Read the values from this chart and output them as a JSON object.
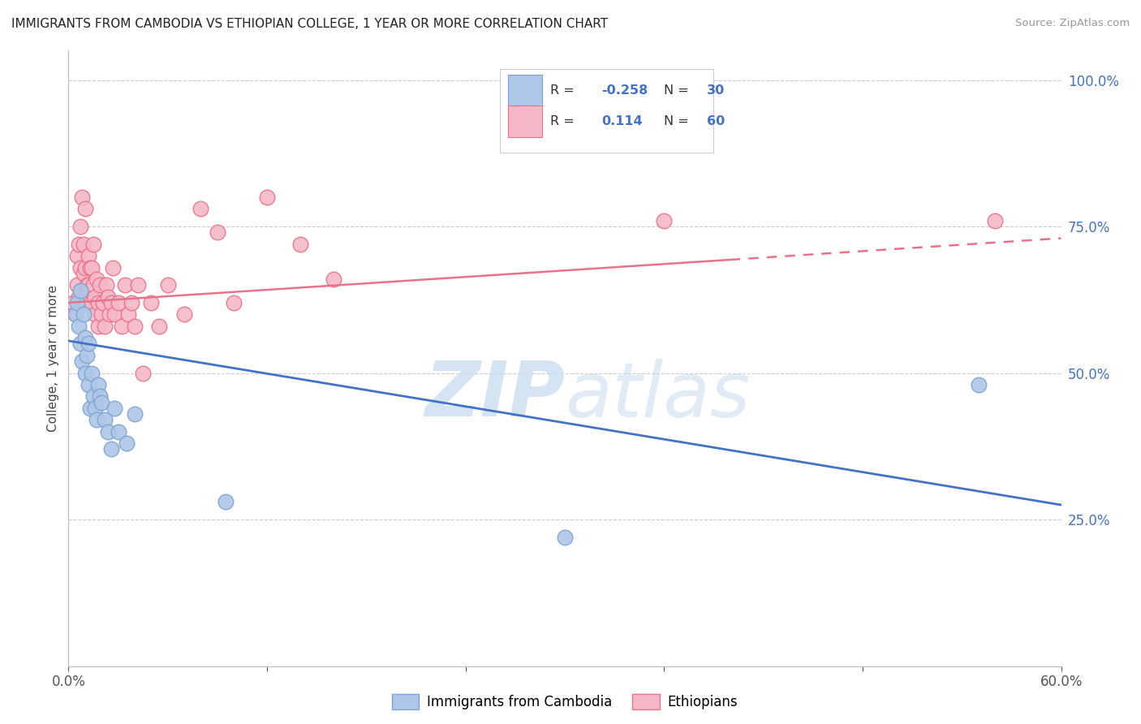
{
  "title": "IMMIGRANTS FROM CAMBODIA VS ETHIOPIAN COLLEGE, 1 YEAR OR MORE CORRELATION CHART",
  "source": "Source: ZipAtlas.com",
  "ylabel": "College, 1 year or more",
  "ytick_labels": [
    "100.0%",
    "75.0%",
    "50.0%",
    "25.0%"
  ],
  "ytick_values": [
    1.0,
    0.75,
    0.5,
    0.25
  ],
  "xlim": [
    0.0,
    0.6
  ],
  "ylim": [
    0.0,
    1.05
  ],
  "legend_blue_r": "-0.258",
  "legend_blue_n": "30",
  "legend_pink_r": "0.114",
  "legend_pink_n": "60",
  "watermark_zip": "ZIP",
  "watermark_atlas": "atlas",
  "blue_scatter_x": [
    0.004,
    0.005,
    0.006,
    0.007,
    0.007,
    0.008,
    0.009,
    0.01,
    0.01,
    0.011,
    0.012,
    0.012,
    0.013,
    0.014,
    0.015,
    0.016,
    0.017,
    0.018,
    0.019,
    0.02,
    0.022,
    0.024,
    0.026,
    0.028,
    0.03,
    0.035,
    0.04,
    0.095,
    0.3,
    0.55
  ],
  "blue_scatter_y": [
    0.6,
    0.62,
    0.58,
    0.64,
    0.55,
    0.52,
    0.6,
    0.5,
    0.56,
    0.53,
    0.48,
    0.55,
    0.44,
    0.5,
    0.46,
    0.44,
    0.42,
    0.48,
    0.46,
    0.45,
    0.42,
    0.4,
    0.37,
    0.44,
    0.4,
    0.38,
    0.43,
    0.28,
    0.22,
    0.48
  ],
  "pink_scatter_x": [
    0.003,
    0.004,
    0.005,
    0.005,
    0.006,
    0.006,
    0.007,
    0.007,
    0.008,
    0.008,
    0.009,
    0.009,
    0.01,
    0.01,
    0.01,
    0.011,
    0.011,
    0.012,
    0.012,
    0.013,
    0.013,
    0.014,
    0.014,
    0.015,
    0.015,
    0.016,
    0.016,
    0.017,
    0.018,
    0.018,
    0.019,
    0.02,
    0.021,
    0.022,
    0.023,
    0.024,
    0.025,
    0.026,
    0.027,
    0.028,
    0.03,
    0.032,
    0.034,
    0.036,
    0.038,
    0.04,
    0.042,
    0.045,
    0.05,
    0.055,
    0.06,
    0.07,
    0.08,
    0.09,
    0.1,
    0.12,
    0.14,
    0.16,
    0.36,
    0.56
  ],
  "pink_scatter_y": [
    0.62,
    0.6,
    0.65,
    0.7,
    0.63,
    0.72,
    0.68,
    0.75,
    0.64,
    0.8,
    0.67,
    0.72,
    0.62,
    0.68,
    0.78,
    0.65,
    0.63,
    0.7,
    0.65,
    0.68,
    0.64,
    0.62,
    0.68,
    0.72,
    0.65,
    0.6,
    0.63,
    0.66,
    0.58,
    0.62,
    0.65,
    0.6,
    0.62,
    0.58,
    0.65,
    0.63,
    0.6,
    0.62,
    0.68,
    0.6,
    0.62,
    0.58,
    0.65,
    0.6,
    0.62,
    0.58,
    0.65,
    0.5,
    0.62,
    0.58,
    0.65,
    0.6,
    0.78,
    0.74,
    0.62,
    0.8,
    0.72,
    0.66,
    0.76,
    0.76
  ],
  "blue_line_color": "#4472C4",
  "pink_line_color": "#E8728A",
  "blue_dot_facecolor": "#AEC6E8",
  "pink_dot_facecolor": "#F5B8C8",
  "blue_dot_edgecolor": "#7BA3D0",
  "pink_dot_edgecolor": "#E8728A",
  "grid_color": "#CCCCCC",
  "background_color": "#FFFFFF",
  "pink_line_solid_end": 0.4,
  "blue_trend_y0": 0.555,
  "blue_trend_y1": 0.275,
  "pink_trend_y0": 0.62,
  "pink_trend_y1": 0.73
}
